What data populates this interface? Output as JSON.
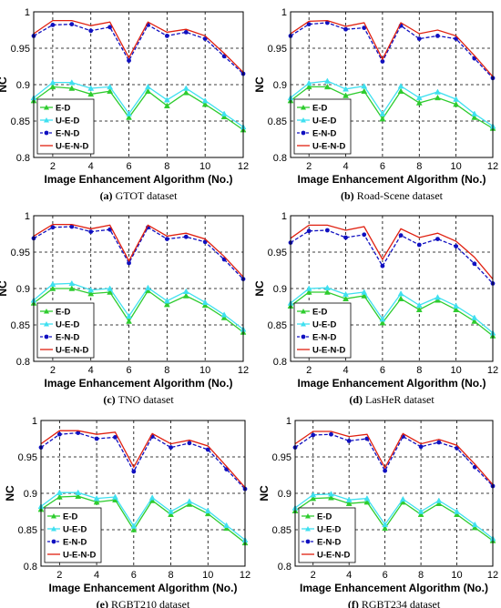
{
  "figure": {
    "colors": {
      "E-D": "#2ecc2e",
      "U-E-D": "#3fe0f0",
      "E-N-D": "#1010c0",
      "U-E-N-D": "#e02010"
    }
  },
  "chart_data": [
    {
      "type": "line",
      "caption_letter": "(a)",
      "caption_text": "GTOT dataset",
      "xlabel": "Image Enhancement Algorithm (No.)",
      "ylabel": "NC",
      "xlim": [
        1,
        12
      ],
      "ylim": [
        0.8,
        1.0
      ],
      "xticks": [
        "2",
        "4",
        "6",
        "8",
        "10",
        "12"
      ],
      "yticks": [
        "0.8",
        "0.85",
        "0.9",
        "0.95",
        "1"
      ],
      "grid": true,
      "legend": "bottom-left",
      "x": [
        1,
        2,
        3,
        4,
        5,
        6,
        7,
        8,
        9,
        10,
        11,
        12
      ],
      "series": [
        {
          "name": "E-D",
          "values": [
            0.878,
            0.897,
            0.895,
            0.887,
            0.891,
            0.855,
            0.891,
            0.871,
            0.889,
            0.873,
            0.856,
            0.838
          ]
        },
        {
          "name": "U-E-D",
          "values": [
            0.882,
            0.903,
            0.903,
            0.895,
            0.897,
            0.86,
            0.897,
            0.879,
            0.895,
            0.878,
            0.86,
            0.842
          ]
        },
        {
          "name": "E-N-D",
          "values": [
            0.967,
            0.982,
            0.983,
            0.974,
            0.979,
            0.933,
            0.982,
            0.967,
            0.972,
            0.963,
            0.939,
            0.915
          ]
        },
        {
          "name": "U-E-N-D",
          "values": [
            0.97,
            0.988,
            0.988,
            0.981,
            0.986,
            0.937,
            0.986,
            0.972,
            0.976,
            0.967,
            0.943,
            0.917
          ]
        }
      ]
    },
    {
      "type": "line",
      "caption_letter": "(b)",
      "caption_text": "Road-Scene dataset",
      "xlabel": "Image Enhancement Algorithm (No.)",
      "ylabel": "NC",
      "xlim": [
        1,
        12
      ],
      "ylim": [
        0.8,
        1.0
      ],
      "xticks": [
        "2",
        "4",
        "6",
        "8",
        "10",
        "12"
      ],
      "yticks": [
        "0.8",
        "0.85",
        "0.9",
        "0.95",
        "1"
      ],
      "grid": true,
      "legend": "bottom-left",
      "x": [
        1,
        2,
        3,
        4,
        5,
        6,
        7,
        8,
        9,
        10,
        11,
        12
      ],
      "series": [
        {
          "name": "E-D",
          "values": [
            0.878,
            0.897,
            0.897,
            0.885,
            0.891,
            0.853,
            0.891,
            0.875,
            0.882,
            0.873,
            0.855,
            0.84
          ]
        },
        {
          "name": "U-E-D",
          "values": [
            0.882,
            0.902,
            0.905,
            0.894,
            0.898,
            0.86,
            0.898,
            0.882,
            0.89,
            0.88,
            0.86,
            0.843
          ]
        },
        {
          "name": "E-N-D",
          "values": [
            0.967,
            0.983,
            0.985,
            0.976,
            0.978,
            0.932,
            0.981,
            0.963,
            0.967,
            0.963,
            0.936,
            0.909
          ]
        },
        {
          "name": "U-E-N-D",
          "values": [
            0.97,
            0.987,
            0.988,
            0.98,
            0.985,
            0.935,
            0.985,
            0.97,
            0.975,
            0.967,
            0.94,
            0.911
          ]
        }
      ]
    },
    {
      "type": "line",
      "caption_letter": "(c)",
      "caption_text": "TNO dataset",
      "xlabel": "Image Enhancement Algorithm (No.)",
      "ylabel": "NC",
      "xlim": [
        1,
        12
      ],
      "ylim": [
        0.8,
        1.0
      ],
      "xticks": [
        "2",
        "4",
        "6",
        "8",
        "10",
        "12"
      ],
      "yticks": [
        "0.8",
        "0.85",
        "0.9",
        "0.95",
        "1"
      ],
      "grid": true,
      "legend": "bottom-left",
      "x": [
        1,
        2,
        3,
        4,
        5,
        6,
        7,
        8,
        9,
        10,
        11,
        12
      ],
      "series": [
        {
          "name": "E-D",
          "values": [
            0.88,
            0.9,
            0.9,
            0.893,
            0.895,
            0.855,
            0.897,
            0.878,
            0.89,
            0.877,
            0.86,
            0.84
          ]
        },
        {
          "name": "U-E-D",
          "values": [
            0.884,
            0.906,
            0.907,
            0.898,
            0.9,
            0.862,
            0.901,
            0.883,
            0.896,
            0.881,
            0.864,
            0.844
          ]
        },
        {
          "name": "E-N-D",
          "values": [
            0.969,
            0.984,
            0.985,
            0.978,
            0.981,
            0.935,
            0.984,
            0.968,
            0.971,
            0.964,
            0.94,
            0.913
          ]
        },
        {
          "name": "U-E-N-D",
          "values": [
            0.972,
            0.988,
            0.988,
            0.982,
            0.987,
            0.938,
            0.987,
            0.972,
            0.976,
            0.968,
            0.944,
            0.916
          ]
        }
      ]
    },
    {
      "type": "line",
      "caption_letter": "(d)",
      "caption_text": "LasHeR dataset",
      "xlabel": "Image Enhancement Algorithm (No.)",
      "ylabel": "NC",
      "xlim": [
        1,
        12
      ],
      "ylim": [
        0.8,
        1.0
      ],
      "xticks": [
        "2",
        "4",
        "6",
        "8",
        "10",
        "12"
      ],
      "yticks": [
        "0.8",
        "0.85",
        "0.9",
        "0.95",
        "1"
      ],
      "grid": true,
      "legend": "bottom-left",
      "x": [
        1,
        2,
        3,
        4,
        5,
        6,
        7,
        8,
        9,
        10,
        11,
        12
      ],
      "series": [
        {
          "name": "E-D",
          "values": [
            0.876,
            0.895,
            0.895,
            0.886,
            0.89,
            0.853,
            0.886,
            0.871,
            0.884,
            0.871,
            0.855,
            0.835
          ]
        },
        {
          "name": "U-E-D",
          "values": [
            0.88,
            0.9,
            0.901,
            0.892,
            0.895,
            0.858,
            0.893,
            0.877,
            0.888,
            0.876,
            0.86,
            0.839
          ]
        },
        {
          "name": "E-N-D",
          "values": [
            0.963,
            0.979,
            0.98,
            0.97,
            0.974,
            0.931,
            0.973,
            0.96,
            0.968,
            0.958,
            0.934,
            0.907
          ]
        },
        {
          "name": "U-E-N-D",
          "values": [
            0.969,
            0.987,
            0.987,
            0.98,
            0.985,
            0.94,
            0.982,
            0.97,
            0.976,
            0.965,
            0.943,
            0.913
          ]
        }
      ]
    },
    {
      "type": "line",
      "caption_letter": "(e)",
      "caption_text": "RGBT210 dataset",
      "xlabel": "Image Enhancement Algorithm (No.)",
      "ylabel": "NC",
      "xlim": [
        1,
        12
      ],
      "ylim": [
        0.8,
        1.0
      ],
      "xticks": [
        "2",
        "4",
        "6",
        "8",
        "10",
        "12"
      ],
      "yticks": [
        "0.8",
        "0.85",
        "0.9",
        "0.95",
        "1"
      ],
      "grid": true,
      "legend": "bottom-left",
      "x": [
        1,
        2,
        3,
        4,
        5,
        6,
        7,
        8,
        9,
        10,
        11,
        12
      ],
      "series": [
        {
          "name": "E-D",
          "values": [
            0.878,
            0.895,
            0.896,
            0.888,
            0.891,
            0.85,
            0.89,
            0.871,
            0.885,
            0.872,
            0.852,
            0.832
          ]
        },
        {
          "name": "U-E-D",
          "values": [
            0.882,
            0.901,
            0.901,
            0.893,
            0.895,
            0.855,
            0.894,
            0.875,
            0.889,
            0.876,
            0.856,
            0.836
          ]
        },
        {
          "name": "E-N-D",
          "values": [
            0.963,
            0.981,
            0.983,
            0.975,
            0.977,
            0.93,
            0.978,
            0.963,
            0.969,
            0.96,
            0.933,
            0.906
          ]
        },
        {
          "name": "U-E-N-D",
          "values": [
            0.968,
            0.986,
            0.986,
            0.981,
            0.984,
            0.936,
            0.982,
            0.968,
            0.973,
            0.965,
            0.937,
            0.908
          ]
        }
      ]
    },
    {
      "type": "line",
      "caption_letter": "(f)",
      "caption_text": "RGBT234 dataset",
      "xlabel": "Image Enhancement Algorithm (No.)",
      "ylabel": "NC",
      "xlim": [
        1,
        12
      ],
      "ylim": [
        0.8,
        1.0
      ],
      "xticks": [
        "2",
        "4",
        "6",
        "8",
        "10",
        "12"
      ],
      "yticks": [
        "0.8",
        "0.85",
        "0.9",
        "0.95",
        "1"
      ],
      "grid": true,
      "legend": "bottom-left",
      "x": [
        1,
        2,
        3,
        4,
        5,
        6,
        7,
        8,
        9,
        10,
        11,
        12
      ],
      "series": [
        {
          "name": "E-D",
          "values": [
            0.876,
            0.893,
            0.894,
            0.886,
            0.888,
            0.852,
            0.888,
            0.871,
            0.886,
            0.871,
            0.853,
            0.835
          ]
        },
        {
          "name": "U-E-D",
          "values": [
            0.88,
            0.898,
            0.899,
            0.891,
            0.893,
            0.857,
            0.892,
            0.875,
            0.89,
            0.875,
            0.857,
            0.838
          ]
        },
        {
          "name": "E-N-D",
          "values": [
            0.963,
            0.98,
            0.981,
            0.972,
            0.975,
            0.931,
            0.978,
            0.964,
            0.97,
            0.962,
            0.936,
            0.91
          ]
        },
        {
          "name": "U-E-N-D",
          "values": [
            0.968,
            0.985,
            0.985,
            0.978,
            0.981,
            0.935,
            0.982,
            0.968,
            0.974,
            0.966,
            0.94,
            0.912
          ]
        }
      ]
    }
  ]
}
